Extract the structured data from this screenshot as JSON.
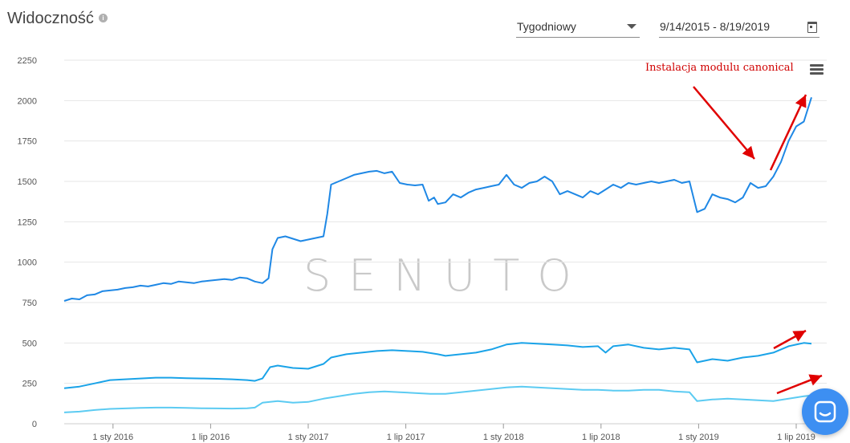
{
  "header": {
    "title": "Widoczność",
    "info_icon": "info-icon",
    "period_select": {
      "value": "Tygodniowy"
    },
    "date_range": {
      "value": "9/14/2015 - 8/19/2019",
      "icon": "calendar-icon"
    },
    "menu_icon": "hamburger-menu-icon"
  },
  "annotation": {
    "text": "Instalacja modulu canonical",
    "color": "#dd0000"
  },
  "watermark": {
    "text": "SENUTO"
  },
  "chat_widget": {
    "icon": "chat-icon",
    "color": "#3d8ff2"
  },
  "chart_data": {
    "type": "line",
    "y_ticks": [
      "0",
      "250",
      "500",
      "750",
      "1000",
      "1250",
      "1500",
      "1750",
      "2000",
      "2250"
    ],
    "ylim": [
      0,
      2250
    ],
    "xlim": [
      0,
      100
    ],
    "x_ticks": [
      {
        "x": 6.4,
        "label": "1 sty 2016"
      },
      {
        "x": 19.2,
        "label": "1 lip 2016"
      },
      {
        "x": 32.0,
        "label": "1 sty 2017"
      },
      {
        "x": 44.8,
        "label": "1 lip 2017"
      },
      {
        "x": 57.6,
        "label": "1 sty 2018"
      },
      {
        "x": 70.4,
        "label": "1 lip 2018"
      },
      {
        "x": 83.2,
        "label": "1 sty 2019"
      },
      {
        "x": 96.0,
        "label": "1 lip 2019"
      }
    ],
    "grid": true,
    "series": [
      {
        "color": "#1f88e5",
        "points": [
          [
            0,
            760
          ],
          [
            1,
            775
          ],
          [
            2,
            770
          ],
          [
            3,
            795
          ],
          [
            4,
            800
          ],
          [
            5,
            820
          ],
          [
            6,
            825
          ],
          [
            7,
            830
          ],
          [
            8,
            840
          ],
          [
            9,
            845
          ],
          [
            10,
            855
          ],
          [
            11,
            850
          ],
          [
            12,
            860
          ],
          [
            13,
            870
          ],
          [
            14,
            865
          ],
          [
            15,
            880
          ],
          [
            16,
            875
          ],
          [
            17,
            870
          ],
          [
            18,
            880
          ],
          [
            19,
            885
          ],
          [
            20,
            890
          ],
          [
            21,
            895
          ],
          [
            22,
            890
          ],
          [
            23,
            905
          ],
          [
            24,
            900
          ],
          [
            25,
            880
          ],
          [
            26,
            870
          ],
          [
            26.8,
            900
          ],
          [
            27.3,
            1080
          ],
          [
            28,
            1150
          ],
          [
            29,
            1160
          ],
          [
            30,
            1145
          ],
          [
            31,
            1130
          ],
          [
            32,
            1140
          ],
          [
            33,
            1150
          ],
          [
            34,
            1160
          ],
          [
            34.5,
            1300
          ],
          [
            35,
            1480
          ],
          [
            36,
            1500
          ],
          [
            37,
            1520
          ],
          [
            38,
            1540
          ],
          [
            39,
            1550
          ],
          [
            40,
            1560
          ],
          [
            41,
            1565
          ],
          [
            42,
            1550
          ],
          [
            43,
            1560
          ],
          [
            44,
            1490
          ],
          [
            45,
            1480
          ],
          [
            46,
            1475
          ],
          [
            47,
            1480
          ],
          [
            47.8,
            1380
          ],
          [
            48.5,
            1400
          ],
          [
            49,
            1360
          ],
          [
            50,
            1370
          ],
          [
            51,
            1420
          ],
          [
            52,
            1400
          ],
          [
            53,
            1430
          ],
          [
            54,
            1450
          ],
          [
            55,
            1460
          ],
          [
            56,
            1470
          ],
          [
            57,
            1480
          ],
          [
            58,
            1540
          ],
          [
            59,
            1480
          ],
          [
            60,
            1460
          ],
          [
            61,
            1490
          ],
          [
            62,
            1500
          ],
          [
            63,
            1530
          ],
          [
            64,
            1500
          ],
          [
            65,
            1420
          ],
          [
            66,
            1440
          ],
          [
            67,
            1420
          ],
          [
            68,
            1400
          ],
          [
            69,
            1440
          ],
          [
            70,
            1420
          ],
          [
            71,
            1450
          ],
          [
            72,
            1480
          ],
          [
            73,
            1460
          ],
          [
            74,
            1490
          ],
          [
            75,
            1480
          ],
          [
            76,
            1490
          ],
          [
            77,
            1500
          ],
          [
            78,
            1490
          ],
          [
            79,
            1500
          ],
          [
            80,
            1510
          ],
          [
            81,
            1490
          ],
          [
            82,
            1500
          ],
          [
            83,
            1310
          ],
          [
            84,
            1330
          ],
          [
            85,
            1420
          ],
          [
            86,
            1400
          ],
          [
            87,
            1390
          ],
          [
            88,
            1370
          ],
          [
            89,
            1400
          ],
          [
            90,
            1490
          ],
          [
            91,
            1460
          ],
          [
            92,
            1470
          ],
          [
            93,
            1530
          ],
          [
            94,
            1620
          ],
          [
            95,
            1750
          ],
          [
            96,
            1840
          ],
          [
            97,
            1870
          ],
          [
            98,
            2020
          ]
        ]
      },
      {
        "color": "#1aa3e8",
        "points": [
          [
            0,
            220
          ],
          [
            2,
            230
          ],
          [
            4,
            250
          ],
          [
            6,
            270
          ],
          [
            8,
            275
          ],
          [
            10,
            280
          ],
          [
            12,
            285
          ],
          [
            14,
            285
          ],
          [
            16,
            282
          ],
          [
            18,
            280
          ],
          [
            20,
            278
          ],
          [
            22,
            275
          ],
          [
            24,
            270
          ],
          [
            25,
            265
          ],
          [
            26,
            280
          ],
          [
            27,
            350
          ],
          [
            28,
            360
          ],
          [
            30,
            345
          ],
          [
            32,
            340
          ],
          [
            34,
            370
          ],
          [
            35,
            410
          ],
          [
            37,
            430
          ],
          [
            39,
            440
          ],
          [
            41,
            450
          ],
          [
            43,
            455
          ],
          [
            45,
            450
          ],
          [
            47,
            445
          ],
          [
            49,
            430
          ],
          [
            50,
            420
          ],
          [
            52,
            430
          ],
          [
            54,
            440
          ],
          [
            56,
            460
          ],
          [
            58,
            490
          ],
          [
            60,
            500
          ],
          [
            62,
            495
          ],
          [
            64,
            490
          ],
          [
            66,
            485
          ],
          [
            68,
            475
          ],
          [
            70,
            480
          ],
          [
            71,
            440
          ],
          [
            72,
            480
          ],
          [
            74,
            490
          ],
          [
            76,
            470
          ],
          [
            78,
            460
          ],
          [
            80,
            470
          ],
          [
            82,
            460
          ],
          [
            83,
            380
          ],
          [
            85,
            400
          ],
          [
            87,
            390
          ],
          [
            89,
            410
          ],
          [
            91,
            420
          ],
          [
            93,
            440
          ],
          [
            95,
            480
          ],
          [
            97,
            500
          ],
          [
            98,
            495
          ]
        ]
      },
      {
        "color": "#5ccbf2",
        "points": [
          [
            0,
            70
          ],
          [
            2,
            75
          ],
          [
            4,
            85
          ],
          [
            6,
            92
          ],
          [
            8,
            95
          ],
          [
            10,
            98
          ],
          [
            12,
            100
          ],
          [
            14,
            100
          ],
          [
            16,
            98
          ],
          [
            18,
            96
          ],
          [
            20,
            95
          ],
          [
            22,
            94
          ],
          [
            24,
            96
          ],
          [
            25,
            100
          ],
          [
            26,
            130
          ],
          [
            28,
            140
          ],
          [
            30,
            130
          ],
          [
            32,
            135
          ],
          [
            34,
            155
          ],
          [
            36,
            170
          ],
          [
            38,
            185
          ],
          [
            40,
            195
          ],
          [
            42,
            200
          ],
          [
            44,
            195
          ],
          [
            46,
            190
          ],
          [
            48,
            185
          ],
          [
            50,
            185
          ],
          [
            52,
            195
          ],
          [
            54,
            205
          ],
          [
            56,
            215
          ],
          [
            58,
            225
          ],
          [
            60,
            230
          ],
          [
            62,
            225
          ],
          [
            64,
            220
          ],
          [
            66,
            215
          ],
          [
            68,
            210
          ],
          [
            70,
            210
          ],
          [
            72,
            205
          ],
          [
            74,
            205
          ],
          [
            76,
            210
          ],
          [
            78,
            210
          ],
          [
            80,
            200
          ],
          [
            82,
            195
          ],
          [
            83,
            140
          ],
          [
            85,
            150
          ],
          [
            87,
            155
          ],
          [
            89,
            150
          ],
          [
            91,
            145
          ],
          [
            93,
            140
          ],
          [
            95,
            155
          ],
          [
            97,
            170
          ],
          [
            98,
            175
          ]
        ]
      }
    ]
  }
}
